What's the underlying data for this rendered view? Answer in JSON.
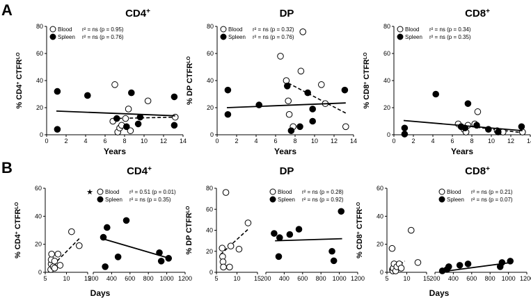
{
  "panel_labels": {
    "a": "A",
    "b": "B"
  },
  "chart_data": [
    {
      "id": "a_cd4",
      "type": "scatter",
      "panel": "A",
      "title": "CD4",
      "title_sup": "+",
      "ylabel": "% CD4",
      "ylabel_sup": "+",
      "ylabel_rest": " CTFR",
      "ylabel_lo": "LO",
      "xlabel": "Years",
      "xlim": [
        0,
        14
      ],
      "ylim": [
        0,
        80
      ],
      "xticks": [
        0,
        2,
        4,
        6,
        8,
        10,
        12,
        14
      ],
      "yticks": [
        0,
        20,
        40,
        60,
        80
      ],
      "legend": [
        {
          "marker": "open",
          "name": "Blood",
          "stat": "r² = ns (p = 0.95)"
        },
        {
          "marker": "filled",
          "name": "Spleen",
          "stat": "r² = ns (p = 0.76)"
        }
      ],
      "series": [
        {
          "name": "Blood",
          "marker": "open",
          "points": [
            [
              7,
              37
            ],
            [
              6.8,
              10
            ],
            [
              7.3,
              2
            ],
            [
              7.5,
              5
            ],
            [
              7.7,
              7
            ],
            [
              8.1,
              12
            ],
            [
              8.4,
              19
            ],
            [
              8.6,
              3
            ],
            [
              10.4,
              25
            ],
            [
              13.2,
              13
            ]
          ],
          "fit": {
            "x": [
              6.8,
              13.2
            ],
            "y": [
              12,
              13
            ],
            "dash": true
          }
        },
        {
          "name": "Spleen",
          "marker": "filled",
          "points": [
            [
              1.1,
              32
            ],
            [
              1.1,
              4
            ],
            [
              4.2,
              29
            ],
            [
              7.2,
              12
            ],
            [
              8.2,
              6
            ],
            [
              8.7,
              31
            ],
            [
              9.4,
              8
            ],
            [
              9.6,
              13
            ],
            [
              13.1,
              28
            ],
            [
              13.1,
              7
            ]
          ],
          "fit": {
            "x": [
              1,
              13.2
            ],
            "y": [
              17.5,
              14
            ],
            "dash": false
          }
        }
      ]
    },
    {
      "id": "a_dp",
      "type": "scatter",
      "panel": "A",
      "title": "DP",
      "title_sup": "",
      "ylabel": "% DP CTFR",
      "ylabel_sup": "",
      "ylabel_rest": "",
      "ylabel_lo": "LO",
      "xlabel": "Years",
      "xlim": [
        0,
        14
      ],
      "ylim": [
        0,
        80
      ],
      "xticks": [
        0,
        2,
        4,
        6,
        8,
        10,
        12,
        14
      ],
      "yticks": [
        0,
        20,
        40,
        60,
        80
      ],
      "legend": [
        {
          "marker": "open",
          "name": "Blood",
          "stat": "r² = ns (p = 0.32)"
        },
        {
          "marker": "filled",
          "name": "Spleen",
          "stat": "r² = ns (p = 0.76)"
        }
      ],
      "series": [
        {
          "name": "Blood",
          "marker": "open",
          "points": [
            [
              6.5,
              58
            ],
            [
              7.1,
              40
            ],
            [
              7.3,
              25
            ],
            [
              7.4,
              15
            ],
            [
              7.8,
              6
            ],
            [
              8.6,
              47
            ],
            [
              8.8,
              76
            ],
            [
              10.7,
              37
            ],
            [
              11.1,
              23
            ],
            [
              13.2,
              6
            ]
          ],
          "fit": {
            "x": [
              6.8,
              13.2
            ],
            "y": [
              40,
              16
            ],
            "dash": true
          }
        },
        {
          "name": "Spleen",
          "marker": "filled",
          "points": [
            [
              1.1,
              33
            ],
            [
              1.1,
              15
            ],
            [
              4.3,
              22
            ],
            [
              7.2,
              36
            ],
            [
              7.6,
              3
            ],
            [
              8.5,
              6
            ],
            [
              9.3,
              31
            ],
            [
              9.8,
              19
            ],
            [
              9.8,
              10
            ],
            [
              13.1,
              33
            ]
          ],
          "fit": {
            "x": [
              1,
              13.2
            ],
            "y": [
              20,
              23.5
            ],
            "dash": false
          }
        }
      ]
    },
    {
      "id": "a_cd8",
      "type": "scatter",
      "panel": "A",
      "title": "CD8",
      "title_sup": "+",
      "ylabel": "% CD8",
      "ylabel_sup": "+",
      "ylabel_rest": " CTFR",
      "ylabel_lo": "LO",
      "xlabel": "Years",
      "xlim": [
        0,
        14
      ],
      "ylim": [
        0,
        80
      ],
      "xticks": [
        0,
        2,
        4,
        6,
        8,
        10,
        12,
        14
      ],
      "yticks": [
        0,
        20,
        40,
        60,
        80
      ],
      "legend": [
        {
          "marker": "open",
          "name": "Blood",
          "stat": "r² = ns (p = 0.34)"
        },
        {
          "marker": "filled",
          "name": "Spleen",
          "stat": "r² = ns (p = 0.35)"
        }
      ],
      "series": [
        {
          "name": "Blood",
          "marker": "open",
          "points": [
            [
              6.6,
              8
            ],
            [
              7.2,
              4
            ],
            [
              7.4,
              2
            ],
            [
              7.6,
              7
            ],
            [
              8.3,
              8
            ],
            [
              8.6,
              17
            ],
            [
              10.6,
              3
            ],
            [
              11.2,
              2
            ],
            [
              13.2,
              2
            ]
          ],
          "fit": {
            "x": [
              6.8,
              13.2
            ],
            "y": [
              7,
              1.5
            ],
            "dash": true
          }
        },
        {
          "name": "Spleen",
          "marker": "filled",
          "points": [
            [
              1.1,
              5
            ],
            [
              1.1,
              0.5
            ],
            [
              4.3,
              30
            ],
            [
              6.9,
              6
            ],
            [
              7.3,
              5
            ],
            [
              7.6,
              23
            ],
            [
              8.5,
              7
            ],
            [
              9.7,
              4
            ],
            [
              10.7,
              2
            ],
            [
              13.1,
              6
            ]
          ],
          "fit": {
            "x": [
              1,
              13.2
            ],
            "y": [
              10.5,
              3
            ],
            "dash": false
          }
        }
      ]
    },
    {
      "id": "b_cd4",
      "type": "scatter",
      "panel": "B",
      "title": "CD4",
      "title_sup": "+",
      "ylabel": "% CD4",
      "ylabel_sup": "+",
      "ylabel_rest": " CTFR",
      "ylabel_lo": "LO",
      "xlabel": "Days",
      "ylim": [
        0,
        60
      ],
      "yticks": [
        0,
        20,
        40,
        60
      ],
      "significance_star": "★",
      "legend": [
        {
          "marker": "open",
          "name": "Blood",
          "stat": "r² = 0.51 (p = 0.01)"
        },
        {
          "marker": "filled",
          "name": "Spleen",
          "stat": "r² = ns (p = 0.35)"
        }
      ],
      "segments": [
        {
          "xlim": [
            5,
            15
          ],
          "xticks": [
            5,
            10,
            15
          ],
          "series": [
            {
              "name": "Blood",
              "marker": "open",
              "points": [
                [
                  6.3,
                  2
                ],
                [
                  6.4,
                  6
                ],
                [
                  6.4,
                  9
                ],
                [
                  6.5,
                  13
                ],
                [
                  6.9,
                  4
                ],
                [
                  7.2,
                  3
                ],
                [
                  7.2,
                  8
                ],
                [
                  8,
                  13
                ],
                [
                  8.5,
                  5
                ],
                [
                  11.2,
                  29
                ],
                [
                  13,
                  19
                ]
              ],
              "fit": {
                "x": [
                  6,
                  13
                ],
                "y": [
                  2.5,
                  24
                ],
                "dash": true
              }
            }
          ]
        },
        {
          "xlim": [
            200,
            1200
          ],
          "xticks": [
            200,
            400,
            600,
            800,
            1000,
            1200
          ],
          "series": [
            {
              "name": "Spleen",
              "marker": "filled",
              "points": [
                [
                  310,
                  25
                ],
                [
                  330,
                  4
                ],
                [
                  350,
                  32
                ],
                [
                  470,
                  11
                ],
                [
                  560,
                  37
                ],
                [
                  920,
                  14
                ],
                [
                  940,
                  8
                ],
                [
                  1020,
                  10
                ]
              ],
              "fit": {
                "x": [
                  300,
                  1030
                ],
                "y": [
                  24,
                  10
                ],
                "dash": false
              }
            }
          ]
        }
      ]
    },
    {
      "id": "b_dp",
      "type": "scatter",
      "panel": "B",
      "title": "DP",
      "title_sup": "",
      "ylabel": "% DP CTFR",
      "ylabel_sup": "",
      "ylabel_rest": "",
      "ylabel_lo": "LO",
      "xlabel": "",
      "ylim": [
        0,
        80
      ],
      "yticks": [
        0,
        20,
        40,
        60,
        80
      ],
      "legend": [
        {
          "marker": "open",
          "name": "Blood",
          "stat": "r² = ns (p = 0.28)"
        },
        {
          "marker": "filled",
          "name": "Spleen",
          "stat": "r² = ns (p = 0.92)"
        }
      ],
      "segments": [
        {
          "xlim": [
            5,
            15
          ],
          "xticks": [
            5,
            10,
            15
          ],
          "series": [
            {
              "name": "Blood",
              "marker": "open",
              "points": [
                [
                  6.4,
                  23
                ],
                [
                  6.5,
                  15
                ],
                [
                  6.6,
                  10
                ],
                [
                  6.7,
                  5
                ],
                [
                  7.3,
                  76
                ],
                [
                  8.2,
                  5
                ],
                [
                  8.5,
                  25
                ],
                [
                  10.5,
                  22
                ],
                [
                  12.7,
                  47
                ]
              ],
              "fit": {
                "x": [
                  6,
                  13
                ],
                "y": [
                  17,
                  42
                ],
                "dash": true
              }
            }
          ]
        },
        {
          "xlim": [
            200,
            1200
          ],
          "xticks": [
            200,
            400,
            600,
            800,
            1000,
            1200
          ],
          "series": [
            {
              "name": "Spleen",
              "marker": "filled",
              "points": [
                [
                  290,
                  37
                ],
                [
                  340,
                  15
                ],
                [
                  350,
                  33
                ],
                [
                  460,
                  36
                ],
                [
                  560,
                  41
                ],
                [
                  920,
                  20
                ],
                [
                  940,
                  11
                ],
                [
                  1020,
                  58
                ]
              ],
              "fit": {
                "x": [
                  300,
                  1030
                ],
                "y": [
                  30,
                  32
                ],
                "dash": false
              }
            }
          ]
        }
      ]
    },
    {
      "id": "b_cd8",
      "type": "scatter",
      "panel": "B",
      "title": "CD8",
      "title_sup": "+",
      "ylabel": "% CD8",
      "ylabel_sup": "+",
      "ylabel_rest": " CTFR",
      "ylabel_lo": "LO",
      "xlabel": "Days",
      "ylim": [
        0,
        60
      ],
      "yticks": [
        0,
        20,
        40,
        60
      ],
      "legend": [
        {
          "marker": "open",
          "name": "Blood",
          "stat": "r² = ns (p = 0.21)"
        },
        {
          "marker": "filled",
          "name": "Spleen",
          "stat": "r² = ns (p = 0.07)"
        }
      ],
      "segments": [
        {
          "xlim": [
            5,
            15
          ],
          "xticks": [
            5,
            10,
            15
          ],
          "series": [
            {
              "name": "Blood",
              "marker": "open",
              "points": [
                [
                  6.3,
                  17
                ],
                [
                  6.4,
                  2
                ],
                [
                  6.5,
                  1
                ],
                [
                  6.6,
                  3
                ],
                [
                  6.8,
                  6
                ],
                [
                  7.2,
                  1
                ],
                [
                  7.5,
                  4
                ],
                [
                  8.1,
                  6
                ],
                [
                  8.6,
                  3
                ],
                [
                  11.1,
                  30
                ],
                [
                  12.8,
                  7
                ]
              ],
              "fit": {
                "x": [
                  6,
                  9.5
                ],
                "y": [
                  1,
                  8
                ],
                "dash": true
              }
            }
          ]
        },
        {
          "xlim": [
            200,
            1200
          ],
          "xticks": [
            200,
            400,
            600,
            800,
            1000,
            1200
          ],
          "series": [
            {
              "name": "Spleen",
              "marker": "filled",
              "points": [
                [
                  280,
                  1
                ],
                [
                  330,
                  2
                ],
                [
                  350,
                  4
                ],
                [
                  470,
                  5
                ],
                [
                  560,
                  6
                ],
                [
                  910,
                  4
                ],
                [
                  930,
                  7
                ],
                [
                  1020,
                  8
                ]
              ],
              "fit": {
                "x": [
                  280,
                  1030
                ],
                "y": [
                  0.5,
                  7
                ],
                "dash": false
              }
            }
          ]
        }
      ]
    }
  ]
}
